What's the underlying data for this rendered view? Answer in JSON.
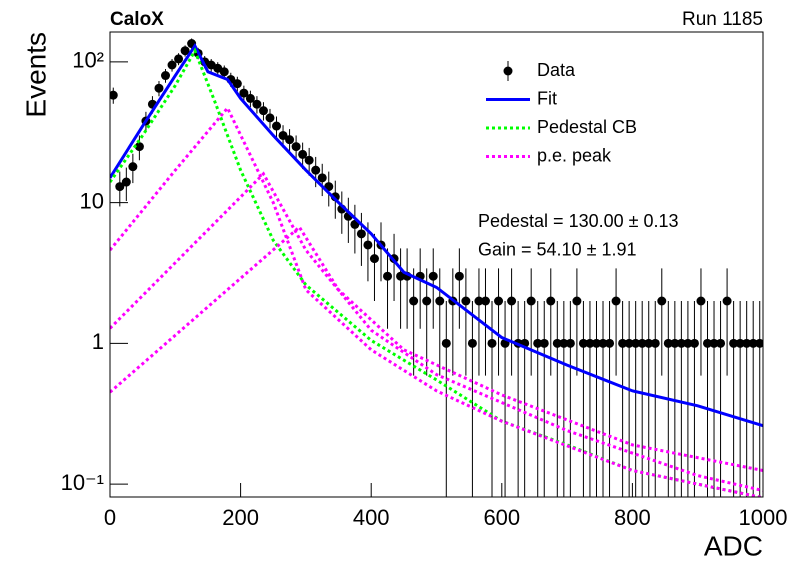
{
  "chart_data": {
    "type": "scatter",
    "title": "CaloX",
    "subtitle": "Run 1185",
    "x_label": "ADC",
    "y_label": "Events",
    "log_y": true,
    "legend": "upper right",
    "xlim": [
      0,
      1000
    ],
    "ylim": [
      0.081,
      163
    ],
    "xticks": [
      0,
      200,
      400,
      600,
      800,
      1000
    ],
    "yticks": [
      {
        "value": 0.1,
        "label": "10⁻¹"
      },
      1,
      10,
      {
        "value": 100,
        "label": "10²"
      }
    ],
    "annotations": [
      "Pedestal = 130.00 ± 0.13",
      "Gain = 54.10 ± 1.91"
    ],
    "series": [
      {
        "name": "Data",
        "color": "#000000",
        "type": "points",
        "x": [
          5,
          15,
          25,
          35,
          45,
          55,
          65,
          75,
          85,
          95,
          105,
          115,
          125,
          135,
          145,
          155,
          165,
          175,
          185,
          195,
          205,
          215,
          225,
          235,
          245,
          255,
          265,
          275,
          285,
          295,
          305,
          315,
          325,
          335,
          345,
          355,
          365,
          375,
          385,
          395,
          405,
          415,
          425,
          435,
          445,
          455,
          465,
          475,
          485,
          495,
          505,
          515,
          525,
          535,
          545,
          555,
          565,
          575,
          585,
          595,
          605,
          615,
          625,
          635,
          645,
          655,
          665,
          675,
          685,
          695,
          705,
          715,
          725,
          735,
          745,
          755,
          765,
          775,
          785,
          795,
          805,
          815,
          825,
          835,
          845,
          855,
          865,
          875,
          885,
          895,
          905,
          915,
          925,
          935,
          945,
          955,
          965,
          975,
          985,
          995
        ],
        "values": [
          58,
          13,
          14,
          18,
          25,
          38,
          50,
          65,
          80,
          95,
          105,
          120,
          135,
          115,
          100,
          95,
          90,
          85,
          75,
          70,
          60,
          55,
          50,
          45,
          40,
          35,
          30,
          28,
          25,
          22,
          20,
          17,
          15,
          13,
          11,
          9,
          8,
          7,
          6,
          5,
          4,
          5,
          3,
          4,
          3,
          3,
          2,
          3,
          2,
          3,
          2,
          1,
          2,
          3,
          2,
          1,
          2,
          2,
          1,
          2,
          1,
          2,
          1,
          1,
          2,
          1,
          1,
          2,
          1,
          1,
          1,
          2,
          1,
          1,
          1,
          1,
          1,
          2,
          1,
          1,
          1,
          1,
          1,
          1,
          2,
          1,
          1,
          1,
          1,
          1,
          2,
          1,
          1,
          1,
          2,
          1,
          1,
          1,
          1,
          1
        ],
        "errors": [
          7.62,
          3.61,
          3.74,
          4.24,
          5,
          6.16,
          7.07,
          8.06,
          8.94,
          9.75,
          10.25,
          10.95,
          11.62,
          10.72,
          10,
          9.75,
          9.49,
          9.22,
          8.66,
          8.37,
          7.75,
          7.42,
          7.07,
          6.71,
          6.32,
          5.92,
          5.48,
          5.29,
          5,
          4.69,
          4.47,
          4.12,
          3.87,
          3.61,
          3.32,
          3,
          2.83,
          2.65,
          2.45,
          2.24,
          2,
          2.24,
          1.73,
          2,
          1.73,
          1.73,
          1.41,
          1.73,
          1.41,
          1.73,
          1.41,
          1,
          1.41,
          1.73,
          1.41,
          1,
          1.41,
          1.41,
          1,
          1.41,
          1,
          1.41,
          1,
          1,
          1.41,
          1,
          1,
          1.41,
          1,
          1,
          1,
          1.41,
          1,
          1,
          1,
          1,
          1,
          1.41,
          1,
          1,
          1,
          1,
          1,
          1,
          1.41,
          1,
          1,
          1,
          1,
          1,
          1.41,
          1,
          1,
          1,
          1.41,
          1,
          1,
          1,
          1,
          1
        ]
      },
      {
        "name": "Fit",
        "color": "#0000ff",
        "type": "line",
        "style": "solid",
        "x": [
          0,
          50,
          100,
          130,
          150,
          180,
          200,
          250,
          300,
          350,
          400,
          450,
          500,
          600,
          700,
          800,
          900,
          1000
        ],
        "values": [
          15,
          35,
          80,
          130,
          85,
          75,
          55,
          30,
          17,
          10,
          6,
          3.2,
          2.5,
          1.1,
          0.7,
          0.46,
          0.36,
          0.26
        ]
      },
      {
        "name": "Pedestal CB",
        "color": "#00ff00",
        "type": "line",
        "style": "dotted",
        "x": [
          0,
          50,
          100,
          130,
          160,
          200,
          250,
          300,
          400,
          500,
          600,
          700,
          800,
          900,
          1000
        ],
        "values": [
          14,
          30,
          68,
          120,
          53,
          17,
          5.4,
          2.6,
          1.05,
          0.55,
          0.28,
          0.19,
          0.125,
          0.1,
          0.08
        ]
      },
      {
        "name": "p.e. peak",
        "color": "#ff00ff",
        "type": "line",
        "style": "dotted",
        "x": [
          0,
          100,
          180,
          250,
          300,
          400,
          500,
          600,
          800,
          1000,
          null,
          0,
          150,
          235,
          300,
          400,
          500,
          700,
          900,
          1000,
          null,
          0,
          200,
          290,
          350,
          450,
          600,
          800,
          1000
        ],
        "values": [
          4.6,
          17,
          47,
          10,
          2.4,
          0.9,
          0.46,
          0.28,
          0.125,
          0.08,
          null,
          1.28,
          6.4,
          16,
          4.6,
          1.24,
          0.6,
          0.24,
          0.115,
          0.09,
          null,
          0.45,
          2.9,
          6.7,
          2.4,
          0.9,
          0.43,
          0.19,
          0.125
        ]
      }
    ]
  }
}
